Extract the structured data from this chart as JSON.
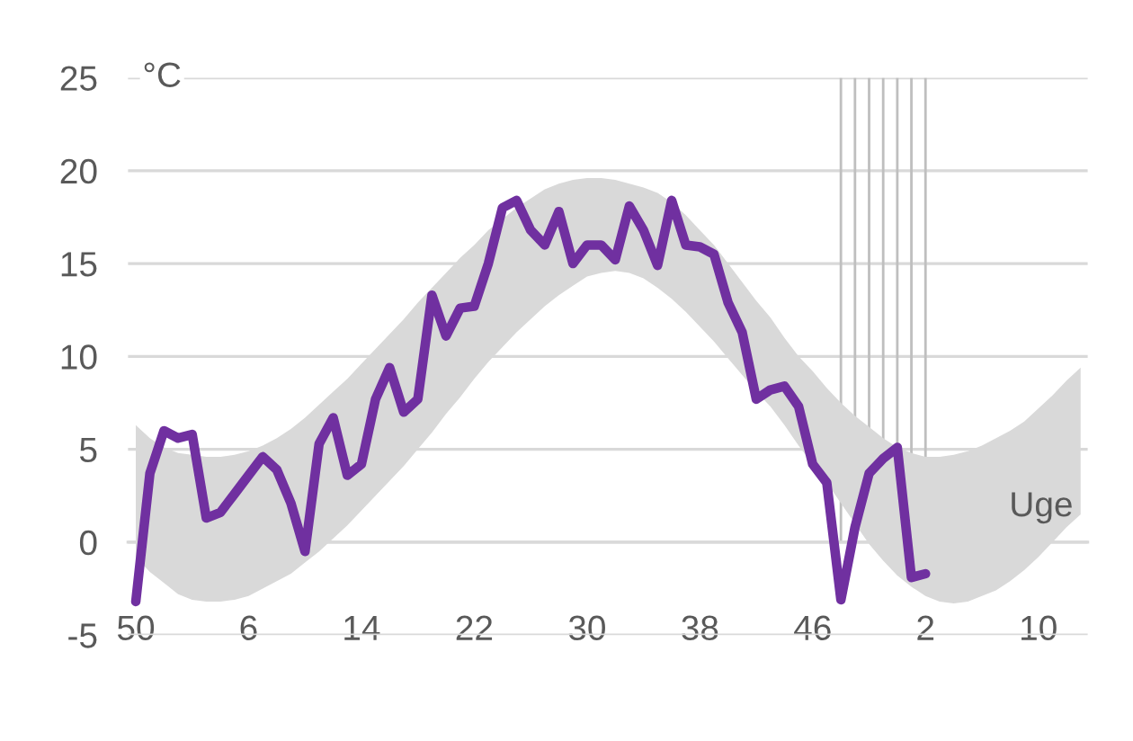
{
  "chart_data": {
    "type": "line",
    "xlabel": "Uge",
    "ylabel": "°C",
    "categories": [
      "50",
      null,
      null,
      null,
      null,
      null,
      null,
      null,
      "6",
      null,
      null,
      null,
      null,
      null,
      null,
      null,
      "14",
      null,
      null,
      null,
      null,
      null,
      null,
      null,
      "22",
      null,
      null,
      null,
      null,
      null,
      null,
      null,
      "30",
      null,
      null,
      null,
      null,
      null,
      null,
      null,
      "38",
      null,
      null,
      null,
      null,
      null,
      null,
      null,
      "46",
      null,
      null,
      null,
      null,
      null,
      null,
      null,
      "2",
      null,
      null,
      null,
      null,
      null,
      null,
      null,
      "10",
      null,
      null,
      null
    ],
    "ylim": [
      -5,
      25
    ],
    "yticks": [
      -5,
      0,
      5,
      10,
      15,
      20,
      25
    ],
    "grid": "y",
    "legend": false,
    "marker": "none",
    "line_style": "solid",
    "series": [
      {
        "type": "bar",
        "color": "#bfbfbf",
        "values": [
          null,
          null,
          null,
          null,
          null,
          null,
          null,
          null,
          null,
          null,
          null,
          null,
          null,
          null,
          null,
          null,
          null,
          null,
          null,
          null,
          null,
          null,
          null,
          null,
          null,
          null,
          null,
          null,
          null,
          null,
          null,
          null,
          null,
          null,
          null,
          null,
          null,
          null,
          null,
          null,
          null,
          null,
          null,
          null,
          null,
          null,
          null,
          null,
          null,
          null,
          25,
          25,
          25,
          25,
          25,
          25,
          25,
          null,
          null,
          null,
          null,
          null,
          null,
          null,
          null,
          null,
          null,
          null
        ]
      },
      {
        "color": "#7030a0",
        "values": [
          -3.2,
          3.7,
          6.0,
          5.6,
          5.8,
          1.3,
          1.6,
          2.6,
          3.6,
          4.6,
          3.9,
          2.1,
          -0.5,
          5.3,
          6.7,
          3.6,
          4.2,
          7.7,
          9.4,
          7.0,
          7.7,
          13.3,
          11.1,
          12.6,
          12.7,
          15.0,
          18.0,
          18.4,
          16.8,
          16.0,
          17.8,
          15.0,
          16.0,
          16.0,
          15.2,
          18.1,
          16.8,
          14.9,
          18.4,
          16.0,
          15.9,
          15.5,
          12.9,
          11.3,
          7.7,
          8.2,
          8.4,
          7.3,
          4.2,
          3.2,
          -3.1,
          0.8,
          3.7,
          4.5,
          5.1,
          -1.9,
          -1.7,
          null,
          null,
          null,
          null,
          null,
          null,
          null,
          null,
          null,
          null,
          null
        ],
        "upper": [
          6.3,
          5.6,
          5.1,
          4.8,
          4.7,
          4.6,
          4.6,
          4.7,
          4.9,
          5.2,
          5.6,
          6.1,
          6.7,
          7.4,
          8.1,
          8.8,
          9.6,
          10.4,
          11.2,
          12.0,
          12.9,
          13.7,
          14.5,
          15.3,
          16.0,
          16.8,
          17.4,
          18.0,
          18.5,
          19.0,
          19.3,
          19.5,
          19.6,
          19.6,
          19.5,
          19.3,
          19.1,
          18.8,
          18.3,
          17.6,
          16.8,
          16.0,
          15.0,
          14.0,
          13.0,
          12.1,
          11.0,
          10.0,
          9.2,
          8.3,
          7.5,
          6.8,
          6.2,
          5.6,
          5.1,
          4.8,
          4.6,
          4.6,
          4.7,
          4.9,
          5.2,
          5.6,
          6.0,
          6.5,
          7.2,
          7.9,
          8.7,
          9.4
        ],
        "lower": [
          -0.8,
          -1.6,
          -2.2,
          -2.8,
          -3.1,
          -3.2,
          -3.2,
          -3.1,
          -2.9,
          -2.5,
          -2.1,
          -1.7,
          -1.1,
          -0.5,
          0.2,
          0.9,
          1.7,
          2.5,
          3.3,
          4.1,
          5.0,
          5.9,
          6.9,
          7.8,
          8.8,
          9.7,
          10.5,
          11.3,
          12.0,
          12.7,
          13.3,
          13.8,
          14.3,
          14.5,
          14.6,
          14.5,
          14.2,
          13.7,
          13.1,
          12.4,
          11.6,
          10.8,
          9.9,
          9.0,
          8.1,
          7.3,
          6.3,
          5.2,
          4.2,
          3.2,
          2.1,
          1.0,
          -0.1,
          -1.0,
          -1.8,
          -2.4,
          -2.9,
          -3.2,
          -3.3,
          -3.2,
          -2.9,
          -2.6,
          -2.1,
          -1.5,
          -0.8,
          0.0,
          0.8,
          1.5
        ]
      }
    ]
  }
}
